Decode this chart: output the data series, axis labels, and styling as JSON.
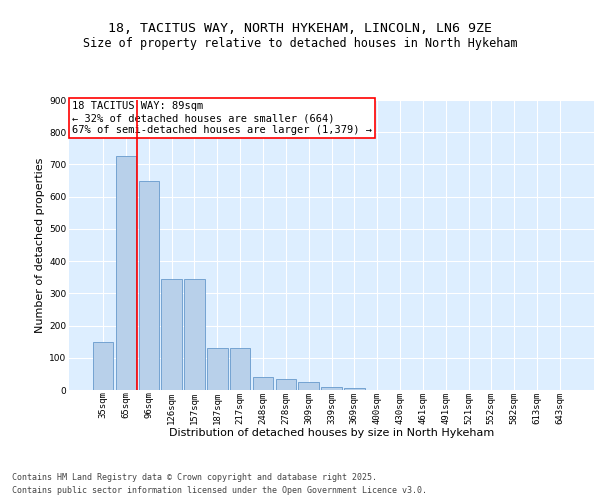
{
  "title_line1": "18, TACITUS WAY, NORTH HYKEHAM, LINCOLN, LN6 9ZE",
  "title_line2": "Size of property relative to detached houses in North Hykeham",
  "xlabel": "Distribution of detached houses by size in North Hykeham",
  "ylabel": "Number of detached properties",
  "categories": [
    "35sqm",
    "65sqm",
    "96sqm",
    "126sqm",
    "157sqm",
    "187sqm",
    "217sqm",
    "248sqm",
    "278sqm",
    "309sqm",
    "339sqm",
    "369sqm",
    "400sqm",
    "430sqm",
    "461sqm",
    "491sqm",
    "521sqm",
    "552sqm",
    "582sqm",
    "613sqm",
    "643sqm"
  ],
  "values": [
    150,
    725,
    650,
    345,
    345,
    130,
    130,
    40,
    35,
    25,
    10,
    7,
    0,
    0,
    0,
    0,
    0,
    0,
    0,
    0,
    0
  ],
  "bar_color": "#b8d0ea",
  "bar_edge_color": "#6699cc",
  "background_color": "#ddeeff",
  "grid_color": "#ffffff",
  "vline_x": 1.5,
  "vline_color": "red",
  "ylim": [
    0,
    900
  ],
  "yticks": [
    0,
    100,
    200,
    300,
    400,
    500,
    600,
    700,
    800,
    900
  ],
  "annotation_title": "18 TACITUS WAY: 89sqm",
  "annotation_line1": "← 32% of detached houses are smaller (664)",
  "annotation_line2": "67% of semi-detached houses are larger (1,379) →",
  "annotation_box_color": "red",
  "footer_line1": "Contains HM Land Registry data © Crown copyright and database right 2025.",
  "footer_line2": "Contains public sector information licensed under the Open Government Licence v3.0.",
  "title_fontsize": 9.5,
  "subtitle_fontsize": 8.5,
  "axis_label_fontsize": 8,
  "tick_fontsize": 6.5,
  "footer_fontsize": 6,
  "annotation_fontsize": 7.5
}
